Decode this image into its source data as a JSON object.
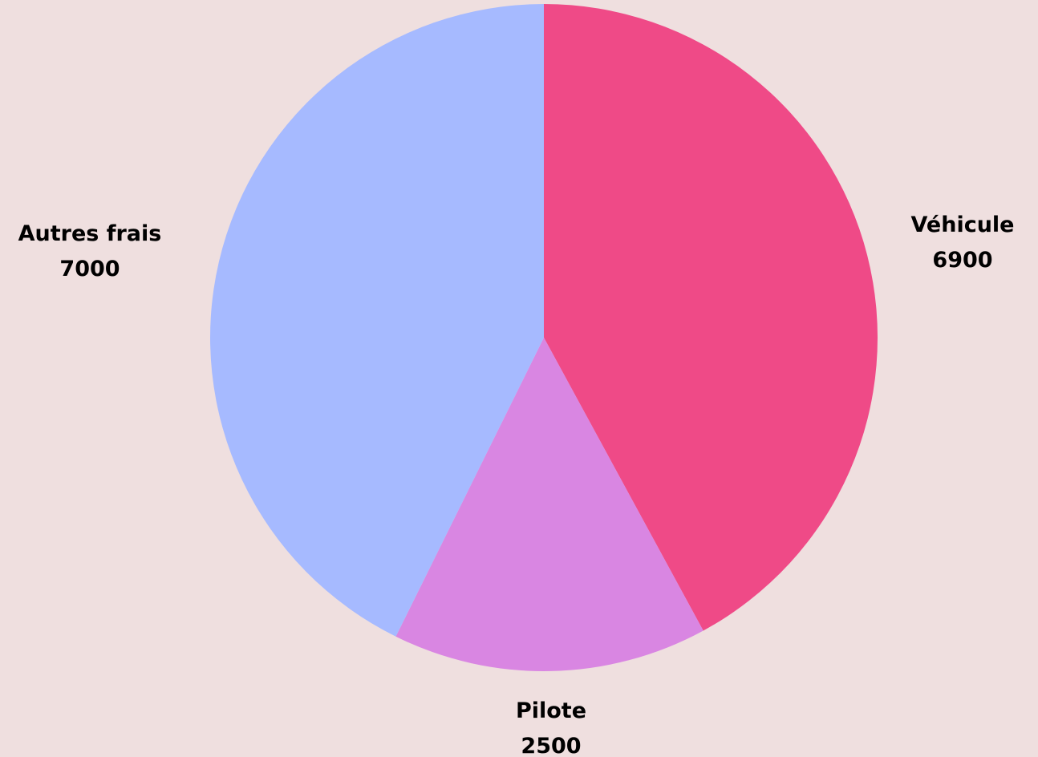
{
  "chart_data": {
    "type": "pie",
    "title": "",
    "start_angle_deg": 0,
    "direction": "clockwise",
    "slices": [
      {
        "label": "Véhicule",
        "value": 6900,
        "display_value": "6900",
        "color": "#ef4a87"
      },
      {
        "label": "Pilote",
        "value": 2500,
        "display_value": "2500",
        "color": "#d986e2"
      },
      {
        "label": "Autres frais",
        "value": 7000,
        "display_value": "7000",
        "color": "#a6baff"
      }
    ]
  }
}
